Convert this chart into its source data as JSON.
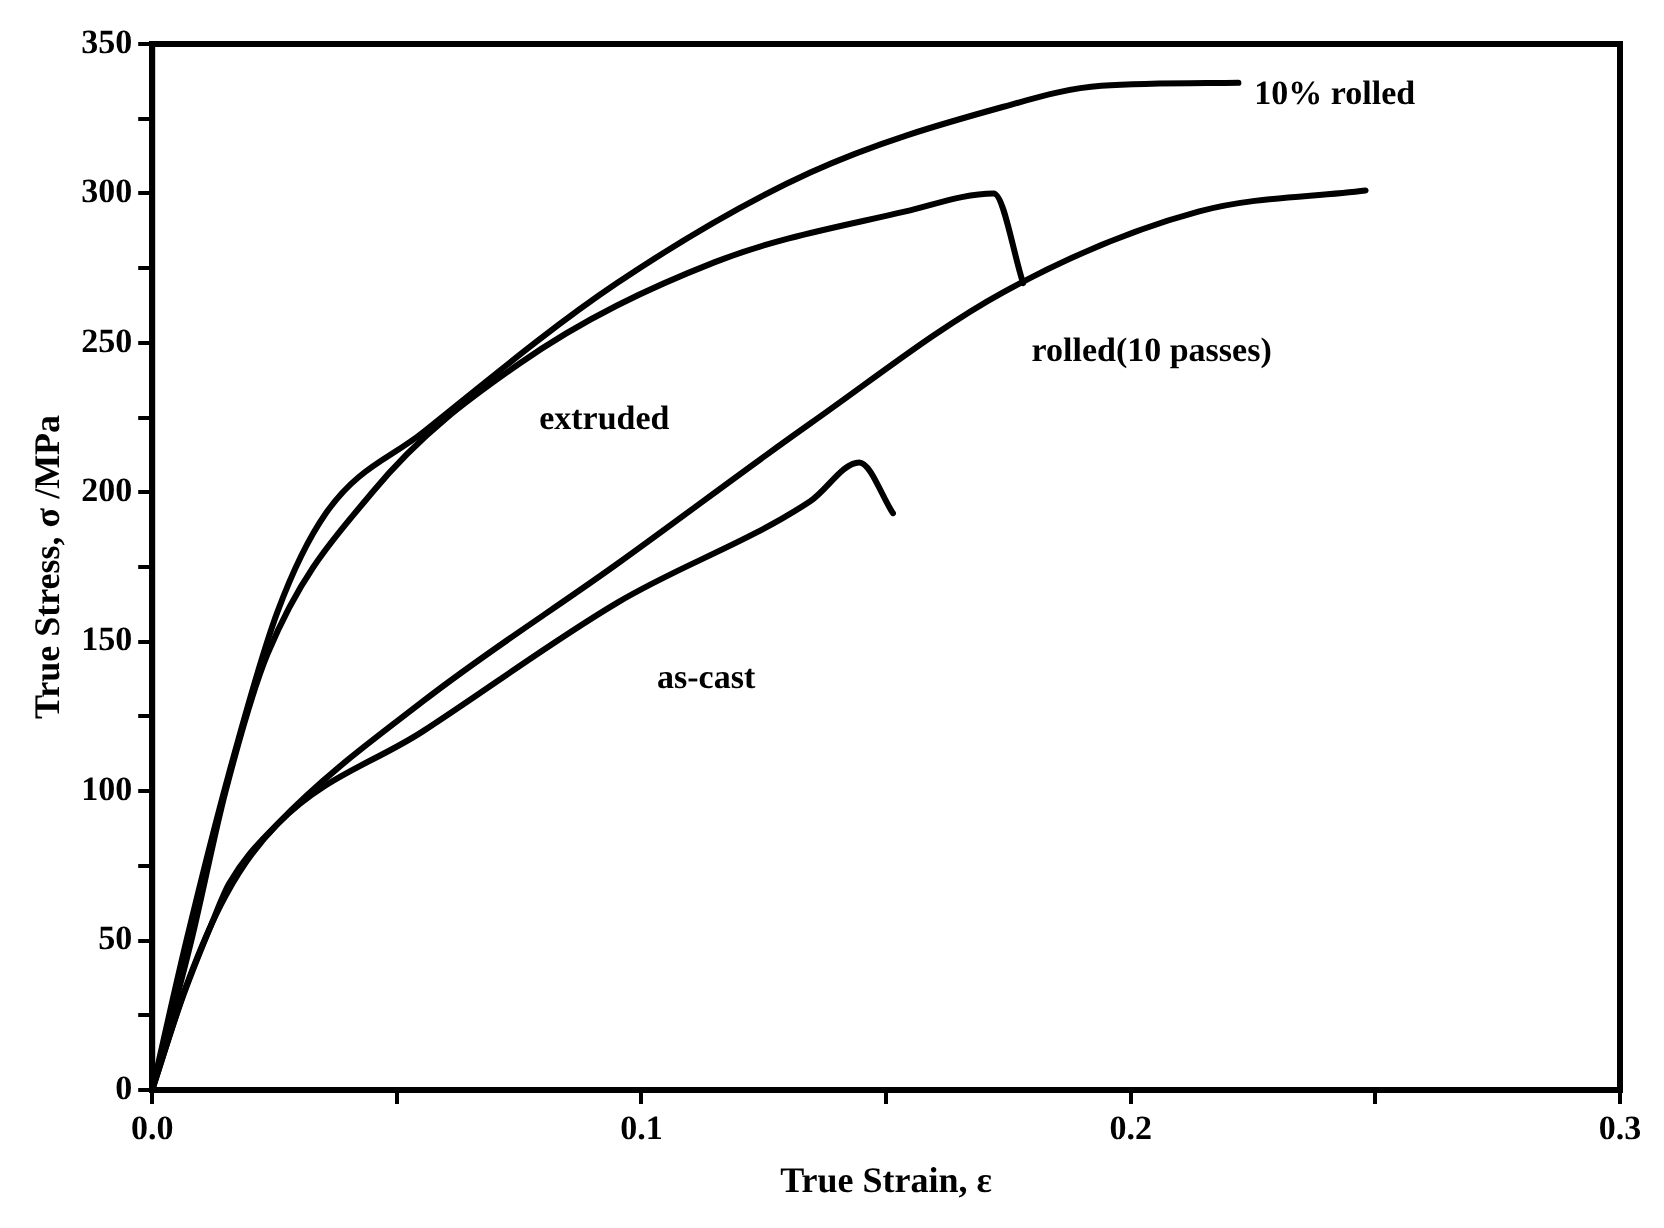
{
  "chart_data": {
    "type": "line",
    "xlabel": "True Strain, ε",
    "ylabel": "True Stress, σ /MPa",
    "xlim": [
      0,
      0.3
    ],
    "ylim": [
      0,
      350
    ],
    "xticks": [
      {
        "value": 0,
        "label": "0.0"
      },
      {
        "value": 0.05,
        "label": null
      },
      0.1,
      {
        "value": 0.15,
        "label": null
      },
      0.2,
      {
        "value": 0.25,
        "label": null
      },
      0.3
    ],
    "yticks": [
      0,
      {
        "value": 25,
        "label": null
      },
      50,
      {
        "value": 75,
        "label": null
      },
      100,
      {
        "value": 125,
        "label": null
      },
      150,
      {
        "value": 175,
        "label": null
      },
      200,
      {
        "value": 225,
        "label": null
      },
      250,
      {
        "value": 275,
        "label": null
      },
      300,
      {
        "value": 325,
        "label": null
      },
      350
    ],
    "grid": false,
    "legend": false,
    "marker": "none",
    "line_style": "solid",
    "series": [
      {
        "name": "10% rolled",
        "color": "#000000",
        "x": [
          0,
          0.007,
          0.0157,
          0.0256,
          0.0355,
          0.0553,
          0.095,
          0.1345,
          0.174,
          0.194,
          0.222
        ],
        "values": [
          0,
          50,
          106,
          160,
          193,
          220,
          270,
          307,
          329,
          336,
          337
        ]
      },
      {
        "name": "extruded",
        "color": "#000000",
        "x": [
          0,
          0.008,
          0.015,
          0.0236,
          0.045,
          0.075,
          0.115,
          0.154,
          0.172,
          0.178
        ],
        "values": [
          0,
          50,
          100,
          146,
          200,
          243,
          277,
          294,
          300,
          270
        ]
      },
      {
        "name": "rolled(10 passes)",
        "color": "#000000",
        "x": [
          0,
          0.006,
          0.012,
          0.0157,
          0.0256,
          0.0553,
          0.095,
          0.1345,
          0.174,
          0.214,
          0.248
        ],
        "values": [
          0,
          30,
          55,
          69,
          89,
          130,
          176,
          223,
          267,
          294,
          301
        ]
      },
      {
        "name": "as-cast",
        "color": "#000000",
        "x": [
          0,
          0.007,
          0.015,
          0.0256,
          0.0553,
          0.095,
          0.1345,
          0.1445,
          0.1514
        ],
        "values": [
          0,
          35,
          65,
          89,
          120,
          163,
          197,
          210,
          193
        ]
      }
    ]
  }
}
